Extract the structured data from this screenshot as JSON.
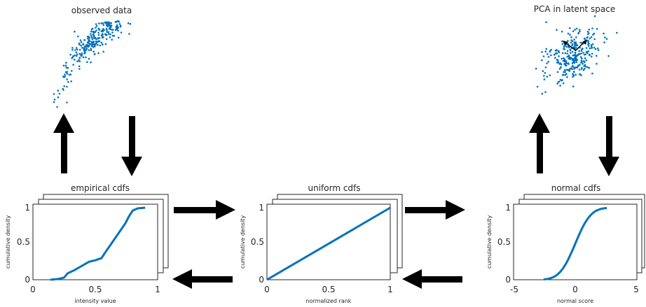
{
  "scatter_panels": {
    "observed": {
      "title": "observed data"
    },
    "latent": {
      "title": "PCA in latent space"
    }
  },
  "cdf_panels": {
    "empirical": {
      "title": "empirical cdfs",
      "xlabel": "intensity value",
      "ylabel": "cumulative density",
      "xticks": [
        "0",
        "0.5",
        "1"
      ],
      "yticks": [
        "0",
        "0.5",
        "1"
      ]
    },
    "uniform": {
      "title": "uniform cdfs",
      "xlabel": "normalized rank",
      "ylabel": "cumulative density",
      "xticks": [
        "0",
        "0.5",
        "1"
      ],
      "yticks": [
        "0",
        "0.5",
        "1"
      ]
    },
    "normal": {
      "title": "normal cdfs",
      "xlabel": "normal score",
      "ylabel": "cumulative density",
      "xticks": [
        "-5",
        "0",
        "5"
      ],
      "yticks": [
        "0",
        "0.5",
        "1"
      ]
    }
  },
  "colors": {
    "line": "#0072bd",
    "arrow": "#000000",
    "axis": "#262626"
  }
}
